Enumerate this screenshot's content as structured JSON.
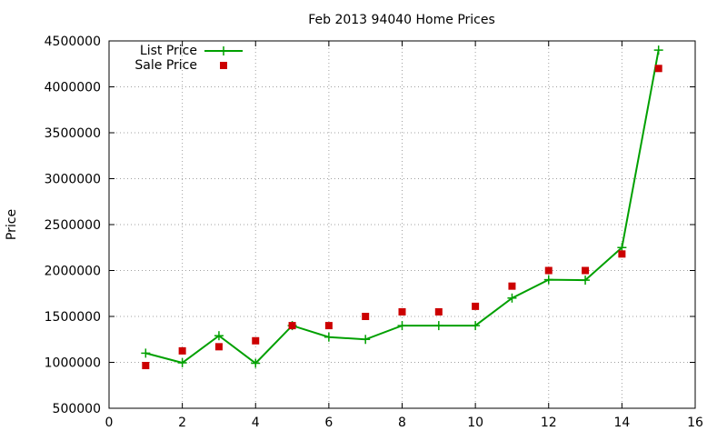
{
  "chart_data": {
    "type": "line",
    "title": "Feb 2013 94040 Home Prices",
    "xlabel": "",
    "ylabel": "Price",
    "xlim": [
      0,
      16
    ],
    "ylim": [
      500000,
      4500000
    ],
    "x_ticks": [
      0,
      2,
      4,
      6,
      8,
      10,
      12,
      14,
      16
    ],
    "y_ticks": [
      500000,
      1000000,
      1500000,
      2000000,
      2500000,
      3000000,
      3500000,
      4000000,
      4500000
    ],
    "grid": true,
    "legend_position": "top-left",
    "series": [
      {
        "name": "List Price",
        "style": "line-with-plus-markers",
        "color": "#00a000",
        "x": [
          1,
          2,
          3,
          4,
          5,
          6,
          7,
          8,
          9,
          10,
          11,
          12,
          13,
          14,
          15
        ],
        "values": [
          1100000,
          995000,
          1290000,
          990000,
          1400000,
          1275000,
          1250000,
          1400000,
          1400000,
          1400000,
          1700000,
          1900000,
          1895000,
          2250000,
          4400000
        ]
      },
      {
        "name": "Sale Price",
        "style": "square-points",
        "color": "#cc0000",
        "x": [
          1,
          2,
          3,
          4,
          5,
          6,
          7,
          8,
          9,
          10,
          11,
          12,
          13,
          14,
          15
        ],
        "values": [
          965000,
          1125000,
          1170000,
          1235000,
          1400000,
          1400000,
          1500000,
          1550000,
          1550000,
          1610000,
          1830000,
          2000000,
          2000000,
          2180000,
          4200000
        ]
      }
    ]
  }
}
